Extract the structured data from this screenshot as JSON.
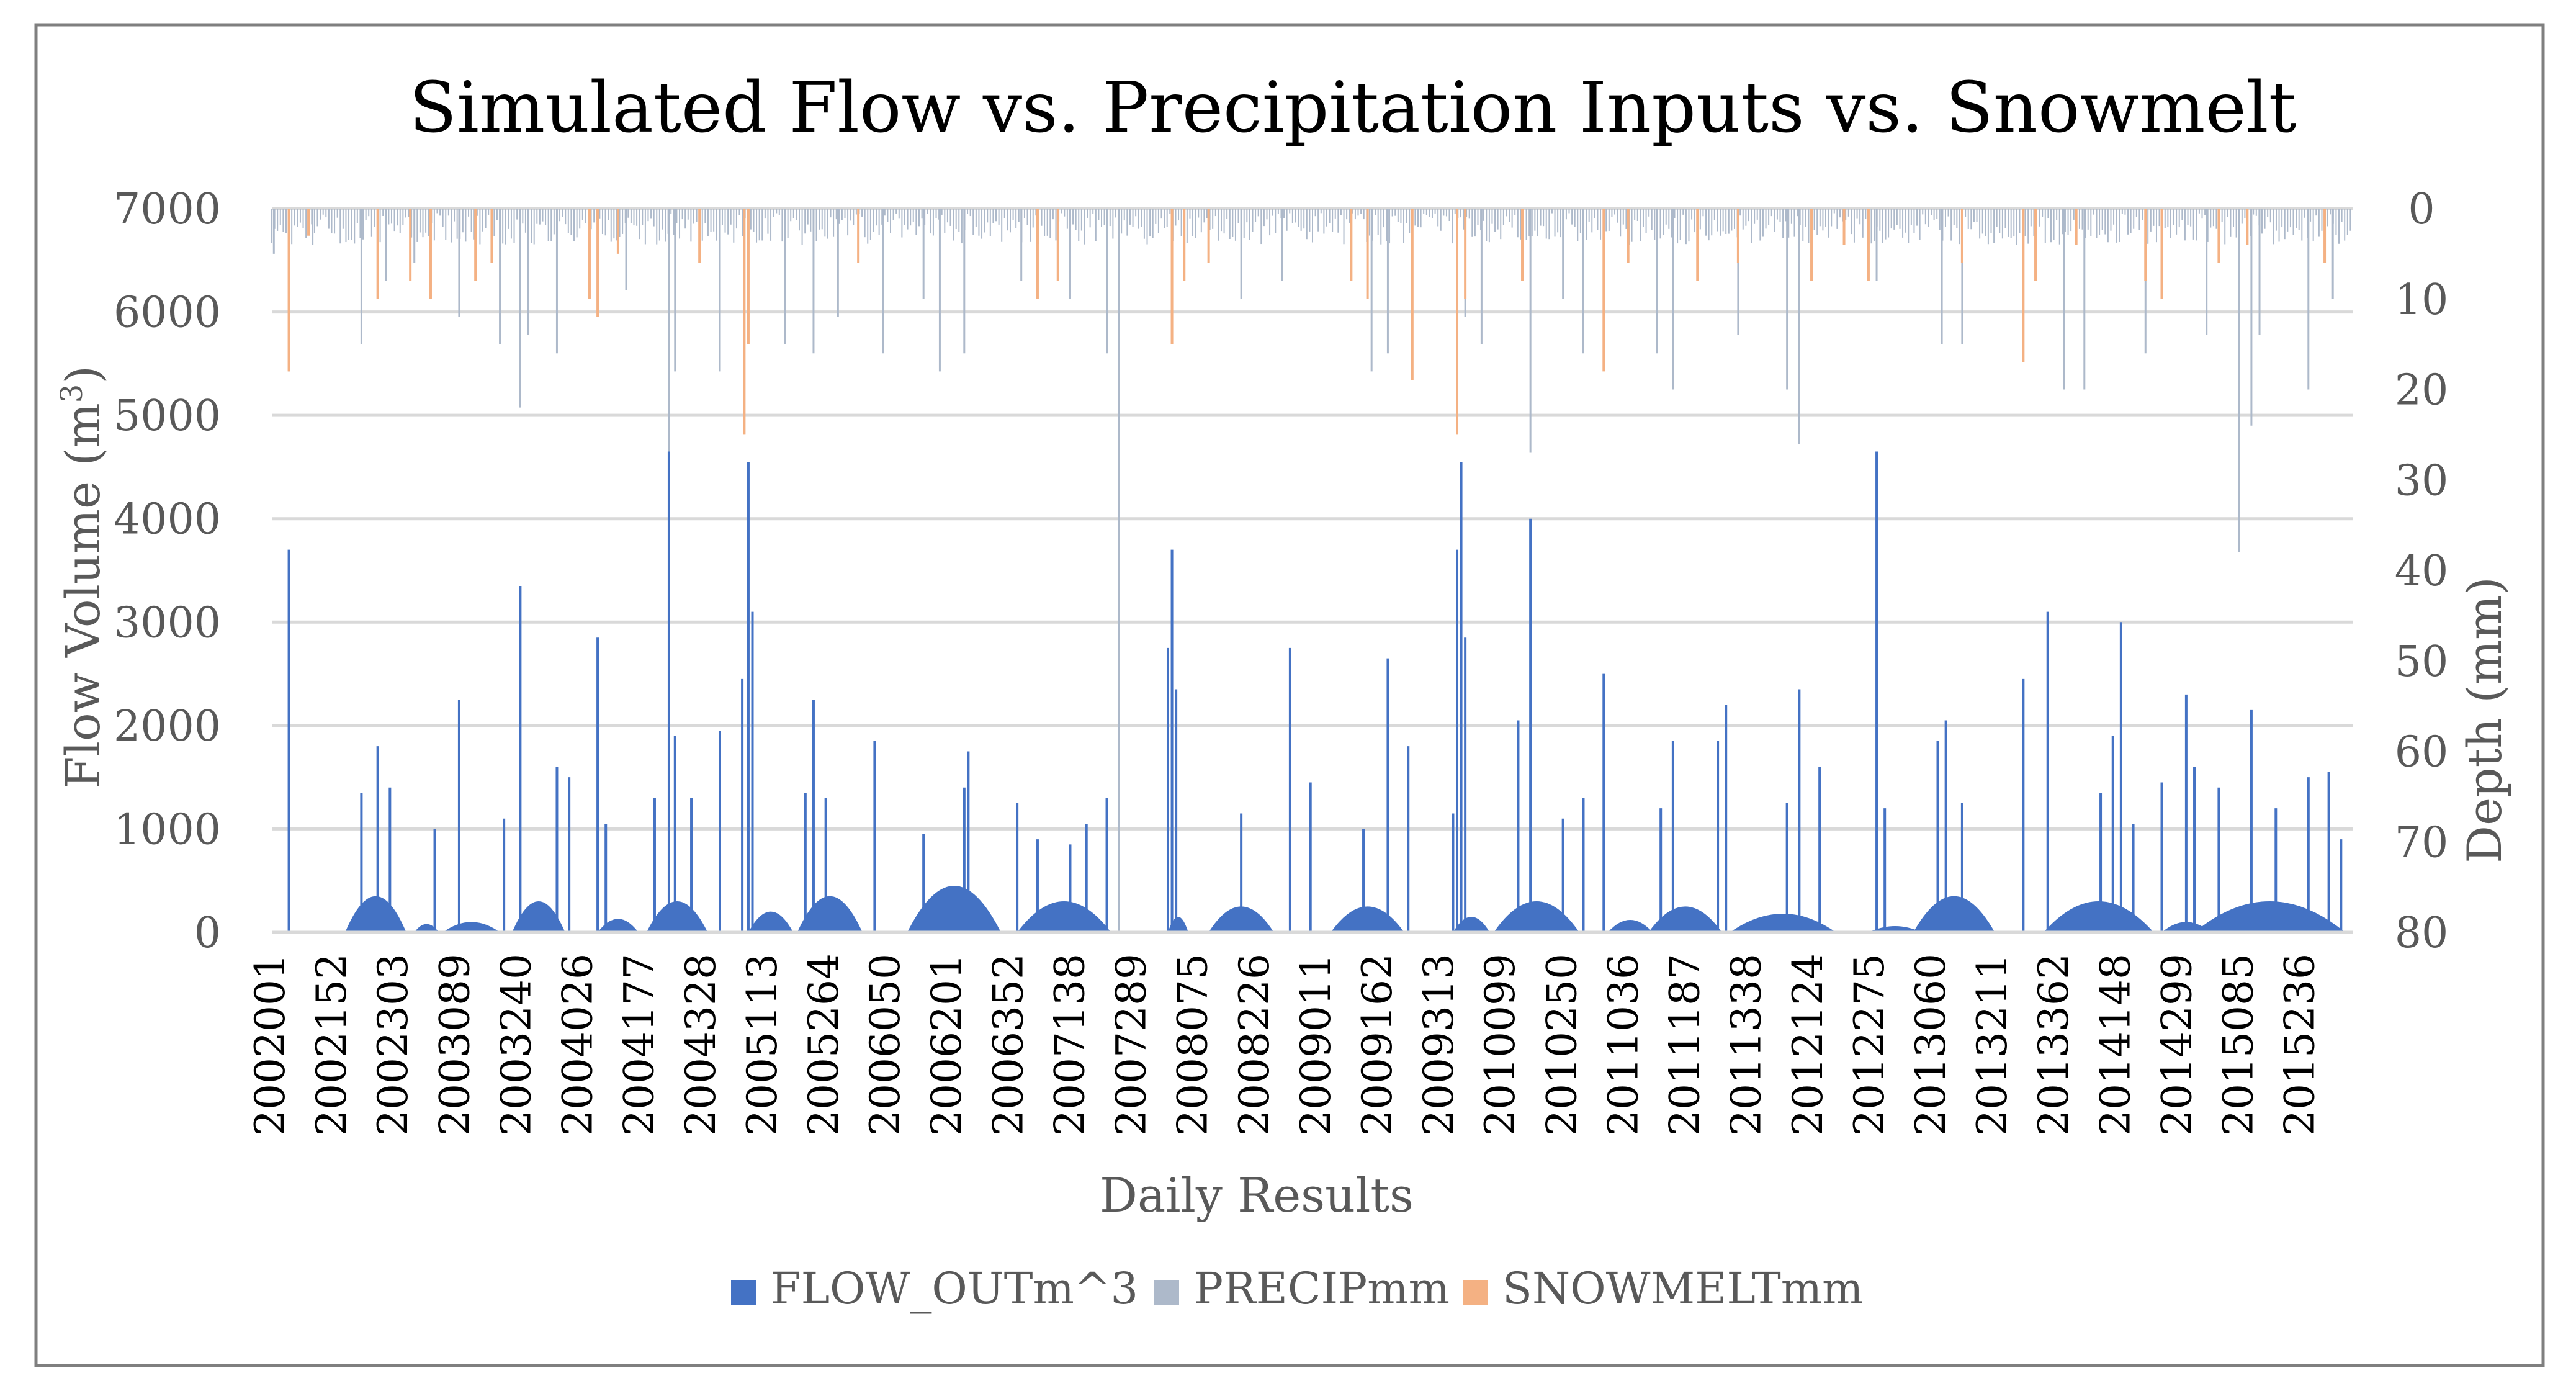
{
  "chart_data": {
    "type": "bar",
    "title": "Simulated Flow vs. Precipitation Inputs vs. Snowmelt",
    "xlabel": "Daily Results",
    "ylabel_left": "Flow Volume  (m",
    "ylabel_left_sup": "3",
    "ylabel_left_close": ")",
    "ylabel_right": "Depth (mm)",
    "ylim_left": [
      0,
      7000
    ],
    "ylim_right": [
      80,
      0
    ],
    "left_ticks": [
      "0",
      "1000",
      "2000",
      "3000",
      "4000",
      "5000",
      "6000",
      "7000"
    ],
    "right_ticks": [
      "0",
      "10",
      "20",
      "30",
      "40",
      "50",
      "60",
      "70",
      "80"
    ],
    "categories": [
      "2002001",
      "2002152",
      "2002303",
      "2003089",
      "2003240",
      "2004026",
      "2004177",
      "2004328",
      "2005113",
      "2005264",
      "2006050",
      "2006201",
      "2006352",
      "2007138",
      "2007289",
      "2008075",
      "2008226",
      "2009011",
      "2009162",
      "2009313",
      "2010099",
      "2010250",
      "2011036",
      "2011187",
      "2011338",
      "2012124",
      "2012275",
      "2013060",
      "2013211",
      "2013362",
      "2014148",
      "2014299",
      "2015085",
      "2015236"
    ],
    "category_interval_days": 151,
    "total_days": 5110,
    "legend_position": "bottom",
    "grid": true,
    "colors": {
      "flow": "#4472c4",
      "precip": "#adb9ca",
      "snowmelt": "#f4b183",
      "grid": "#d9d9d9",
      "axis_text": "#595959",
      "title": "#000000",
      "frame": "#7f7f7f"
    },
    "series": [
      {
        "name": "FLOW_OUTm^3",
        "axis": "left",
        "peaks": [
          {
            "day": 42,
            "value": 3700
          },
          {
            "day": 220,
            "value": 1350
          },
          {
            "day": 260,
            "value": 1800
          },
          {
            "day": 290,
            "value": 1400
          },
          {
            "day": 400,
            "value": 1000
          },
          {
            "day": 460,
            "value": 2250
          },
          {
            "day": 570,
            "value": 1100
          },
          {
            "day": 610,
            "value": 3350
          },
          {
            "day": 700,
            "value": 1600
          },
          {
            "day": 730,
            "value": 1500
          },
          {
            "day": 800,
            "value": 2850
          },
          {
            "day": 820,
            "value": 1050
          },
          {
            "day": 940,
            "value": 1300
          },
          {
            "day": 975,
            "value": 4650
          },
          {
            "day": 990,
            "value": 1900
          },
          {
            "day": 1030,
            "value": 1300
          },
          {
            "day": 1100,
            "value": 1950
          },
          {
            "day": 1155,
            "value": 2450
          },
          {
            "day": 1170,
            "value": 4550
          },
          {
            "day": 1180,
            "value": 3100
          },
          {
            "day": 1310,
            "value": 1350
          },
          {
            "day": 1330,
            "value": 2250
          },
          {
            "day": 1360,
            "value": 1300
          },
          {
            "day": 1480,
            "value": 1850
          },
          {
            "day": 1600,
            "value": 950
          },
          {
            "day": 1700,
            "value": 1400
          },
          {
            "day": 1710,
            "value": 1750
          },
          {
            "day": 1830,
            "value": 1250
          },
          {
            "day": 1880,
            "value": 900
          },
          {
            "day": 1960,
            "value": 850
          },
          {
            "day": 2000,
            "value": 1050
          },
          {
            "day": 2050,
            "value": 1300
          },
          {
            "day": 2200,
            "value": 2750
          },
          {
            "day": 2210,
            "value": 3700
          },
          {
            "day": 2220,
            "value": 2350
          },
          {
            "day": 2380,
            "value": 1150
          },
          {
            "day": 2500,
            "value": 2750
          },
          {
            "day": 2550,
            "value": 1450
          },
          {
            "day": 2680,
            "value": 1000
          },
          {
            "day": 2740,
            "value": 2650
          },
          {
            "day": 2790,
            "value": 1800
          },
          {
            "day": 2900,
            "value": 1150
          },
          {
            "day": 2910,
            "value": 3700
          },
          {
            "day": 2920,
            "value": 4550
          },
          {
            "day": 2930,
            "value": 2850
          },
          {
            "day": 3060,
            "value": 2050
          },
          {
            "day": 3090,
            "value": 4000
          },
          {
            "day": 3170,
            "value": 1100
          },
          {
            "day": 3220,
            "value": 1300
          },
          {
            "day": 3270,
            "value": 2500
          },
          {
            "day": 3410,
            "value": 1200
          },
          {
            "day": 3440,
            "value": 1850
          },
          {
            "day": 3550,
            "value": 1850
          },
          {
            "day": 3570,
            "value": 2200
          },
          {
            "day": 3720,
            "value": 1250
          },
          {
            "day": 3750,
            "value": 2350
          },
          {
            "day": 3800,
            "value": 1600
          },
          {
            "day": 3940,
            "value": 4650
          },
          {
            "day": 3960,
            "value": 1200
          },
          {
            "day": 4090,
            "value": 1850
          },
          {
            "day": 4110,
            "value": 2050
          },
          {
            "day": 4150,
            "value": 1250
          },
          {
            "day": 4300,
            "value": 2450
          },
          {
            "day": 4360,
            "value": 3100
          },
          {
            "day": 4490,
            "value": 1350
          },
          {
            "day": 4520,
            "value": 1900
          },
          {
            "day": 4540,
            "value": 3000
          },
          {
            "day": 4570,
            "value": 1050
          },
          {
            "day": 4640,
            "value": 1450
          },
          {
            "day": 4700,
            "value": 2300
          },
          {
            "day": 4720,
            "value": 1600
          },
          {
            "day": 4780,
            "value": 1400
          },
          {
            "day": 4860,
            "value": 2150
          },
          {
            "day": 4920,
            "value": 1200
          },
          {
            "day": 5000,
            "value": 1500
          },
          {
            "day": 5050,
            "value": 1550
          },
          {
            "day": 5080,
            "value": 900
          }
        ],
        "baseflow_humps": [
          {
            "start": 180,
            "end": 330,
            "value": 350
          },
          {
            "start": 350,
            "end": 410,
            "value": 80
          },
          {
            "start": 420,
            "end": 560,
            "value": 100
          },
          {
            "start": 590,
            "end": 720,
            "value": 300
          },
          {
            "start": 800,
            "end": 900,
            "value": 130
          },
          {
            "start": 920,
            "end": 1070,
            "value": 300
          },
          {
            "start": 1170,
            "end": 1280,
            "value": 200
          },
          {
            "start": 1290,
            "end": 1450,
            "value": 350
          },
          {
            "start": 1560,
            "end": 1790,
            "value": 450
          },
          {
            "start": 1830,
            "end": 2060,
            "value": 300
          },
          {
            "start": 2200,
            "end": 2250,
            "value": 150
          },
          {
            "start": 2300,
            "end": 2460,
            "value": 250
          },
          {
            "start": 2600,
            "end": 2780,
            "value": 250
          },
          {
            "start": 2900,
            "end": 2990,
            "value": 150
          },
          {
            "start": 3000,
            "end": 3210,
            "value": 300
          },
          {
            "start": 3280,
            "end": 3390,
            "value": 120
          },
          {
            "start": 3380,
            "end": 3560,
            "value": 250
          },
          {
            "start": 3580,
            "end": 3840,
            "value": 180
          },
          {
            "start": 3920,
            "end": 4050,
            "value": 60
          },
          {
            "start": 4030,
            "end": 4230,
            "value": 350
          },
          {
            "start": 4350,
            "end": 4620,
            "value": 300
          },
          {
            "start": 4640,
            "end": 4760,
            "value": 100
          },
          {
            "start": 4720,
            "end": 5090,
            "value": 300
          }
        ]
      },
      {
        "name": "PRECIPmm",
        "axis": "right",
        "peaks": [
          {
            "day": 5,
            "value": 5
          },
          {
            "day": 42,
            "value": 18
          },
          {
            "day": 100,
            "value": 4
          },
          {
            "day": 220,
            "value": 15
          },
          {
            "day": 280,
            "value": 8
          },
          {
            "day": 350,
            "value": 6
          },
          {
            "day": 460,
            "value": 12
          },
          {
            "day": 560,
            "value": 15
          },
          {
            "day": 610,
            "value": 22
          },
          {
            "day": 630,
            "value": 14
          },
          {
            "day": 700,
            "value": 16
          },
          {
            "day": 800,
            "value": 10
          },
          {
            "day": 870,
            "value": 9
          },
          {
            "day": 975,
            "value": 30
          },
          {
            "day": 990,
            "value": 18
          },
          {
            "day": 1100,
            "value": 18
          },
          {
            "day": 1170,
            "value": 14
          },
          {
            "day": 1260,
            "value": 15
          },
          {
            "day": 1330,
            "value": 16
          },
          {
            "day": 1390,
            "value": 12
          },
          {
            "day": 1500,
            "value": 16
          },
          {
            "day": 1600,
            "value": 10
          },
          {
            "day": 1640,
            "value": 18
          },
          {
            "day": 1700,
            "value": 16
          },
          {
            "day": 1840,
            "value": 8
          },
          {
            "day": 1960,
            "value": 10
          },
          {
            "day": 2050,
            "value": 16
          },
          {
            "day": 2080,
            "value": 80
          },
          {
            "day": 2210,
            "value": 12
          },
          {
            "day": 2380,
            "value": 10
          },
          {
            "day": 2480,
            "value": 8
          },
          {
            "day": 2700,
            "value": 18
          },
          {
            "day": 2740,
            "value": 16
          },
          {
            "day": 2930,
            "value": 12
          },
          {
            "day": 2970,
            "value": 15
          },
          {
            "day": 3090,
            "value": 27
          },
          {
            "day": 3170,
            "value": 10
          },
          {
            "day": 3220,
            "value": 16
          },
          {
            "day": 3400,
            "value": 16
          },
          {
            "day": 3440,
            "value": 20
          },
          {
            "day": 3600,
            "value": 14
          },
          {
            "day": 3720,
            "value": 20
          },
          {
            "day": 3750,
            "value": 26
          },
          {
            "day": 3940,
            "value": 8
          },
          {
            "day": 4100,
            "value": 15
          },
          {
            "day": 4150,
            "value": 15
          },
          {
            "day": 4300,
            "value": 12
          },
          {
            "day": 4400,
            "value": 20
          },
          {
            "day": 4450,
            "value": 20
          },
          {
            "day": 4600,
            "value": 16
          },
          {
            "day": 4750,
            "value": 14
          },
          {
            "day": 4830,
            "value": 38
          },
          {
            "day": 4860,
            "value": 24
          },
          {
            "day": 4880,
            "value": 14
          },
          {
            "day": 5000,
            "value": 20
          },
          {
            "day": 5060,
            "value": 10
          }
        ]
      },
      {
        "name": "SNOWMELTmm",
        "axis": "right",
        "peaks": [
          {
            "day": 42,
            "value": 18
          },
          {
            "day": 90,
            "value": 3
          },
          {
            "day": 260,
            "value": 10
          },
          {
            "day": 340,
            "value": 8
          },
          {
            "day": 390,
            "value": 10
          },
          {
            "day": 500,
            "value": 8
          },
          {
            "day": 540,
            "value": 6
          },
          {
            "day": 780,
            "value": 10
          },
          {
            "day": 800,
            "value": 12
          },
          {
            "day": 850,
            "value": 5
          },
          {
            "day": 1050,
            "value": 6
          },
          {
            "day": 1160,
            "value": 25
          },
          {
            "day": 1170,
            "value": 15
          },
          {
            "day": 1440,
            "value": 6
          },
          {
            "day": 1880,
            "value": 10
          },
          {
            "day": 1930,
            "value": 8
          },
          {
            "day": 2210,
            "value": 15
          },
          {
            "day": 2240,
            "value": 8
          },
          {
            "day": 2300,
            "value": 6
          },
          {
            "day": 2650,
            "value": 8
          },
          {
            "day": 2690,
            "value": 10
          },
          {
            "day": 2800,
            "value": 19
          },
          {
            "day": 2910,
            "value": 25
          },
          {
            "day": 2930,
            "value": 10
          },
          {
            "day": 3070,
            "value": 8
          },
          {
            "day": 3270,
            "value": 18
          },
          {
            "day": 3330,
            "value": 6
          },
          {
            "day": 3500,
            "value": 8
          },
          {
            "day": 3600,
            "value": 6
          },
          {
            "day": 3780,
            "value": 8
          },
          {
            "day": 3860,
            "value": 4
          },
          {
            "day": 3920,
            "value": 8
          },
          {
            "day": 4150,
            "value": 6
          },
          {
            "day": 4300,
            "value": 17
          },
          {
            "day": 4330,
            "value": 8
          },
          {
            "day": 4430,
            "value": 4
          },
          {
            "day": 4600,
            "value": 8
          },
          {
            "day": 4640,
            "value": 10
          },
          {
            "day": 4780,
            "value": 6
          },
          {
            "day": 4850,
            "value": 4
          },
          {
            "day": 5040,
            "value": 6
          }
        ]
      }
    ]
  }
}
